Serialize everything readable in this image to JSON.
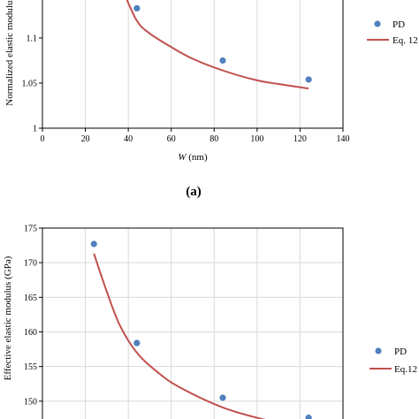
{
  "colors": {
    "pd_marker": "#4f81bd",
    "eq_line": "#c0504d",
    "grid": "#d9d9d9"
  },
  "panel_a_label": "(a)",
  "chart_data": [
    {
      "type": "scatter",
      "xlabel": "W (nm)",
      "xlabel_italic": "W",
      "xlabel_unit": " (nm)",
      "ylabel": "Normalized elastic modulus",
      "xlim": [
        0,
        140
      ],
      "ylim": [
        1,
        1.15
      ],
      "xticks": [
        "0",
        "20",
        "40",
        "60",
        "80",
        "100",
        "120",
        "140"
      ],
      "xtick_values": [
        0,
        20,
        40,
        60,
        80,
        100,
        120,
        140
      ],
      "yticks": [
        "1",
        "1.05",
        "1.1"
      ],
      "ytick_values": [
        1,
        1.05,
        1.1
      ],
      "grid": "vertical",
      "legend_position": "right",
      "series": [
        {
          "name": "PD",
          "kind": "points",
          "x": [
            44,
            84,
            124
          ],
          "y": [
            1.133,
            1.075,
            1.054
          ]
        },
        {
          "name": "Eq. 12",
          "kind": "line",
          "x": [
            38,
            44,
            50,
            60,
            70,
            84,
            100,
            110,
            124
          ],
          "y": [
            1.15,
            1.119,
            1.105,
            1.09,
            1.077,
            1.064,
            1.053,
            1.049,
            1.044
          ]
        }
      ]
    },
    {
      "type": "scatter",
      "ylabel": "Effective elastic modulus (GPa)",
      "xlim": [
        0,
        140
      ],
      "ylim": [
        145,
        175
      ],
      "yticks": [
        "150",
        "155",
        "160",
        "165",
        "170",
        "175"
      ],
      "ytick_values": [
        150,
        155,
        160,
        165,
        170,
        175
      ],
      "grid": "both",
      "legend_position": "right",
      "series": [
        {
          "name": "PD",
          "kind": "points",
          "x": [
            24,
            44,
            84,
            124
          ],
          "y": [
            172.7,
            158.4,
            150.5,
            147.6
          ]
        },
        {
          "name": "Eq.12",
          "kind": "line",
          "x": [
            24,
            30,
            36,
            44,
            54,
            64,
            84,
            104,
            124
          ],
          "y": [
            171.3,
            165.8,
            161.0,
            157.0,
            154.1,
            152.0,
            149.1,
            147.3,
            146.1
          ]
        }
      ]
    }
  ]
}
